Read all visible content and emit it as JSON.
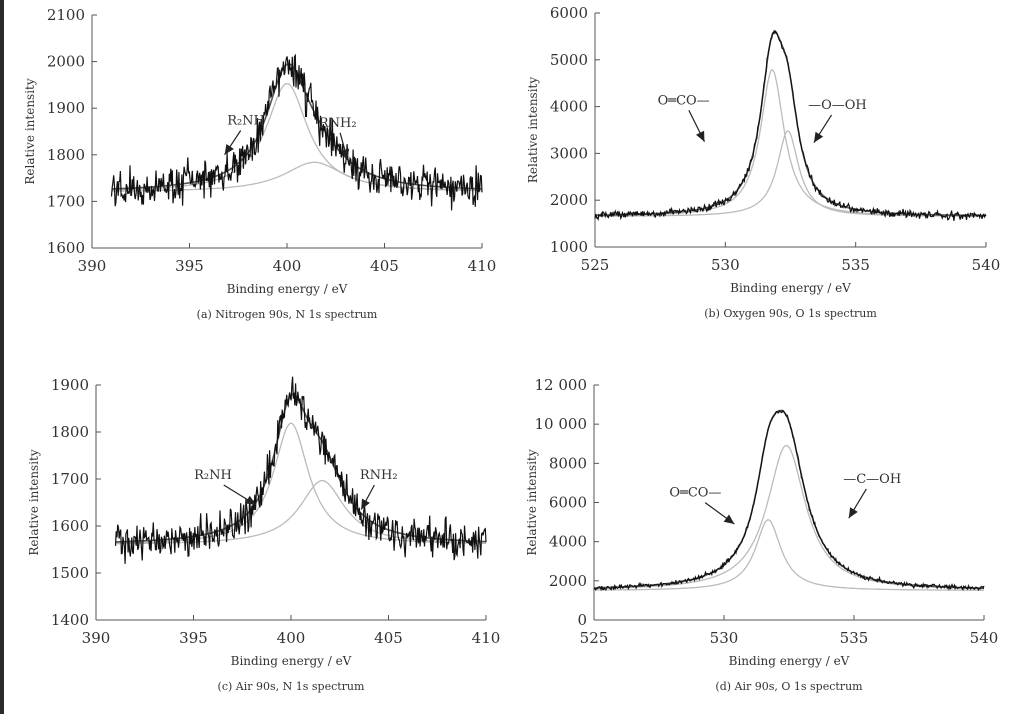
{
  "chart_data": [
    {
      "id": "a",
      "type": "line",
      "caption": "(a) Nitrogen 90s, N 1s spectrum",
      "xlabel": "Binding energy / eV",
      "ylabel": "Relative intensity",
      "xlim": [
        390,
        410
      ],
      "ylim": [
        1600,
        2100
      ],
      "xticks": [
        390,
        395,
        400,
        405,
        410
      ],
      "yticks": [
        1600,
        1700,
        1800,
        1900,
        2000,
        2100
      ],
      "ytick_labels": [
        "1600",
        "1700",
        "1800",
        "1900",
        "2000",
        "2100"
      ],
      "grid": false,
      "x_start": 391,
      "baseline": 1720,
      "noise": 28,
      "measured_peak": 1995,
      "envelope_color": "#555555",
      "component_color": "#bbbbbb",
      "data_color": "#111111",
      "components": [
        {
          "label": "R₂NH",
          "center": 400.0,
          "height": 255,
          "width": 1.3
        },
        {
          "label": "RNH₂",
          "center": 401.4,
          "height": 70,
          "width": 1.9
        }
      ],
      "annotations": [
        {
          "text": "R₂NH",
          "x": 397.9,
          "y": 1865,
          "arrow_to": [
            396.8,
            1800
          ]
        },
        {
          "text": "RNH₂",
          "x": 402.6,
          "y": 1860,
          "arrow_to": [
            403.1,
            1790
          ]
        }
      ]
    },
    {
      "id": "b",
      "type": "line",
      "caption": "(b) Oxygen 90s, O 1s spectrum",
      "xlabel": "Binding energy / eV",
      "ylabel": "Relative intensity",
      "xlim": [
        525,
        540
      ],
      "ylim": [
        1000,
        6000
      ],
      "xticks": [
        525,
        530,
        535,
        540
      ],
      "yticks": [
        1000,
        2000,
        3000,
        4000,
        5000,
        6000
      ],
      "ytick_labels": [
        "1000",
        "2000",
        "3000",
        "4000",
        "5000",
        "6000"
      ],
      "grid": false,
      "x_start": 525,
      "baseline": 1650,
      "noise": 60,
      "measured_peak": 5600,
      "envelope_color": "#555555",
      "component_color": "#bbbbbb",
      "data_color": "#111111",
      "components": [
        {
          "label": "O═CO—",
          "center": 531.8,
          "height": 3600,
          "width": 0.55
        },
        {
          "label": "—O—OH",
          "center": 532.4,
          "height": 2100,
          "width": 0.5
        }
      ],
      "annotations": [
        {
          "text": "O═CO—",
          "x": 528.4,
          "y": 4050,
          "arrow_to": [
            529.2,
            3250
          ]
        },
        {
          "text": "—O—OH",
          "x": 534.3,
          "y": 3950,
          "arrow_to": [
            533.4,
            3230
          ]
        }
      ]
    },
    {
      "id": "c",
      "type": "line",
      "caption": "(c) Air 90s, N 1s spectrum",
      "xlabel": "Binding energy / eV",
      "ylabel": "Relative intensity",
      "xlim": [
        390,
        410
      ],
      "ylim": [
        1400,
        1900
      ],
      "xticks": [
        390,
        395,
        400,
        405,
        410
      ],
      "yticks": [
        1400,
        1500,
        1600,
        1700,
        1800,
        1900
      ],
      "ytick_labels": [
        "1400",
        "1500",
        "1600",
        "1700",
        "1800",
        "1900"
      ],
      "grid": false,
      "x_start": 391,
      "baseline": 1560,
      "noise": 28,
      "measured_peak": 1880,
      "envelope_color": "#555555",
      "component_color": "#bbbbbb",
      "data_color": "#111111",
      "components": [
        {
          "label": "R₂NH",
          "center": 400.0,
          "height": 265,
          "width": 1.1
        },
        {
          "label": "RNH₂",
          "center": 401.6,
          "height": 140,
          "width": 1.4
        }
      ],
      "annotations": [
        {
          "text": "R₂NH",
          "x": 396.0,
          "y": 1700,
          "arrow_to": [
            398.2,
            1645
          ]
        },
        {
          "text": "RNH₂",
          "x": 404.5,
          "y": 1700,
          "arrow_to": [
            403.6,
            1635
          ]
        }
      ]
    },
    {
      "id": "d",
      "type": "line",
      "caption": "(d) Air 90s, O 1s spectrum",
      "xlabel": "Binding energy / eV",
      "ylabel": "Relative intensity",
      "xlim": [
        525,
        540
      ],
      "ylim": [
        0,
        12000
      ],
      "xticks": [
        525,
        530,
        535,
        540
      ],
      "yticks": [
        0,
        2000,
        4000,
        6000,
        8000,
        10000,
        12000
      ],
      "ytick_labels": [
        "0",
        "2000",
        "4000",
        "6000",
        "8000",
        "10 000",
        "12 000"
      ],
      "grid": false,
      "x_start": 525,
      "baseline": 1500,
      "noise": 80,
      "measured_peak": 10700,
      "envelope_color": "#555555",
      "component_color": "#bbbbbb",
      "data_color": "#111111",
      "components": [
        {
          "label": "O═CO—",
          "center": 531.7,
          "height": 4000,
          "width": 0.6
        },
        {
          "label": "—C—OH",
          "center": 532.4,
          "height": 8200,
          "width": 0.9
        }
      ],
      "annotations": [
        {
          "text": "O═CO—",
          "x": 528.9,
          "y": 6300,
          "arrow_to": [
            530.4,
            4900
          ]
        },
        {
          "text": "—C—OH",
          "x": 535.7,
          "y": 7000,
          "arrow_to": [
            534.8,
            5200
          ]
        }
      ]
    }
  ]
}
